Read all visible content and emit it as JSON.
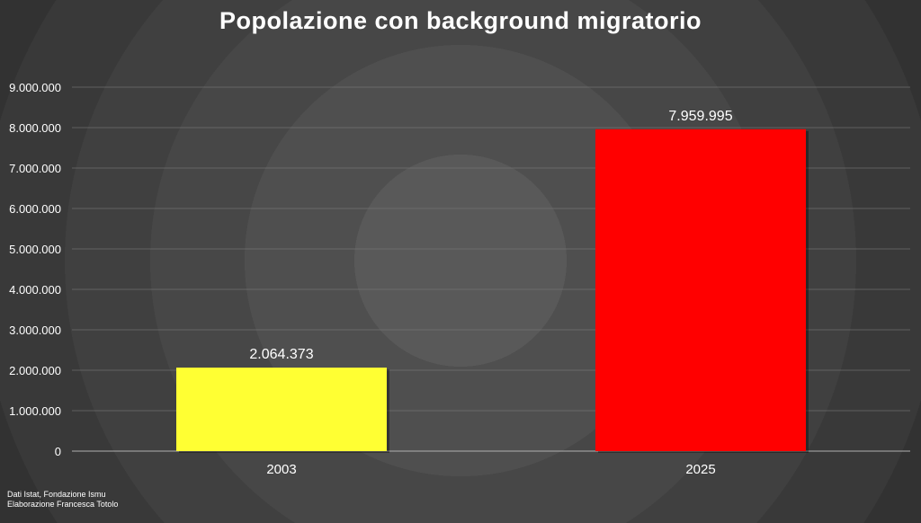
{
  "chart_data": {
    "type": "bar",
    "title": "Popolazione con background migratorio",
    "categories": [
      "2003",
      "2025"
    ],
    "values": [
      2064373,
      7959995
    ],
    "value_labels": [
      "2.064.373",
      "7.959.995"
    ],
    "colors": [
      "#FFFF33",
      "#FF0000"
    ],
    "ylim": [
      0,
      9000000
    ],
    "yticks": [
      {
        "value": 0,
        "label": "0"
      },
      {
        "value": 1000000,
        "label": "1.000.000"
      },
      {
        "value": 2000000,
        "label": "2.000.000"
      },
      {
        "value": 3000000,
        "label": "3.000.000"
      },
      {
        "value": 4000000,
        "label": "4.000.000"
      },
      {
        "value": 5000000,
        "label": "5.000.000"
      },
      {
        "value": 6000000,
        "label": "6.000.000"
      },
      {
        "value": 7000000,
        "label": "7.000.000"
      },
      {
        "value": 8000000,
        "label": "8.000.000"
      },
      {
        "value": 9000000,
        "label": "9.000.000"
      }
    ],
    "grid": true,
    "legend": "none"
  },
  "source": {
    "line1": "Dati Istat, Fondazione Ismu",
    "line2": "Elaborazione Francesca Totolo"
  }
}
